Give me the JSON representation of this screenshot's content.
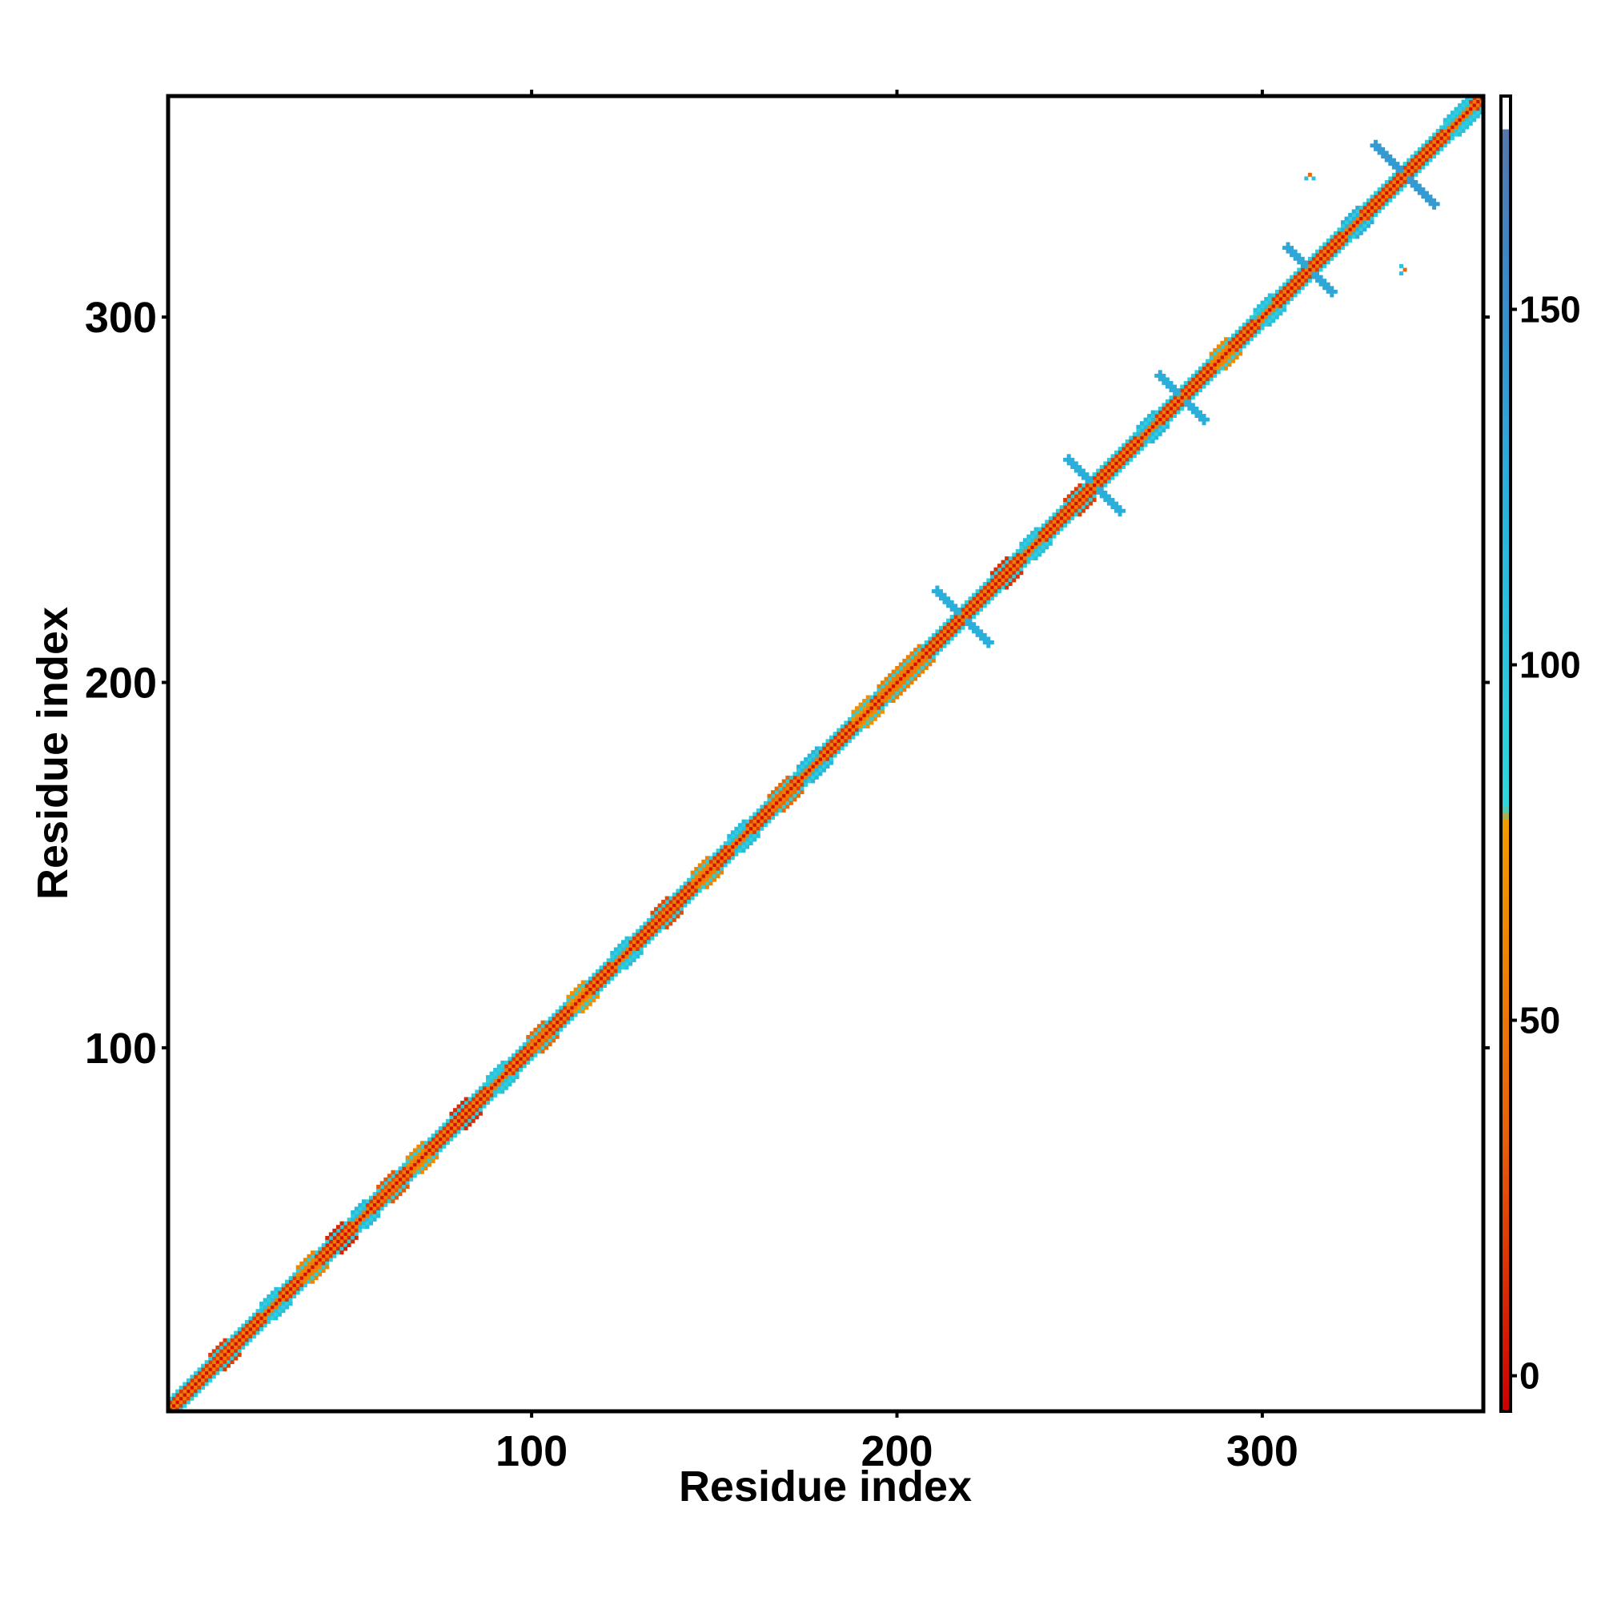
{
  "chart_data": {
    "type": "heatmap",
    "title": "",
    "xlabel": "Residue index",
    "ylabel": "Residue index",
    "xlim": [
      1,
      360
    ],
    "ylim": [
      1,
      360
    ],
    "x_ticks": [
      100,
      200,
      300
    ],
    "y_ticks": [
      100,
      200,
      300
    ],
    "grid": false,
    "legend": "colorbar-right",
    "colorbar": {
      "range": [
        -5,
        180
      ],
      "ticks": [
        0,
        50,
        100,
        150
      ],
      "stops": [
        {
          "value": -5,
          "color": "#cc0000"
        },
        {
          "value": 35,
          "color": "#e8630a"
        },
        {
          "value": 78,
          "color": "#f29a00"
        },
        {
          "value": 80,
          "color": "#2fd6dc"
        },
        {
          "value": 120,
          "color": "#29b4dc"
        },
        {
          "value": 155,
          "color": "#3a88c8"
        },
        {
          "value": 175,
          "color": "#5577aa"
        },
        {
          "value": 175.5,
          "color": "#ffffff"
        },
        {
          "value": 180,
          "color": "#ffffff"
        }
      ]
    },
    "diagonal_bands": [
      {
        "offset": 0,
        "value": 0
      },
      {
        "offset": 1,
        "value": 55
      },
      {
        "offset": 2,
        "value": 18
      },
      {
        "offset": 3,
        "value": 90
      }
    ],
    "diagonal_blobs": [
      {
        "start": 12,
        "end": 16,
        "value": 20
      },
      {
        "start": 26,
        "end": 30,
        "value": 110
      },
      {
        "start": 36,
        "end": 40,
        "value": 60
      },
      {
        "start": 44,
        "end": 48,
        "value": 10
      },
      {
        "start": 51,
        "end": 54,
        "value": 115
      },
      {
        "start": 58,
        "end": 62,
        "value": 30
      },
      {
        "start": 66,
        "end": 70,
        "value": 65
      },
      {
        "start": 78,
        "end": 82,
        "value": 12
      },
      {
        "start": 88,
        "end": 92,
        "value": 105
      },
      {
        "start": 99,
        "end": 103,
        "value": 40
      },
      {
        "start": 110,
        "end": 114,
        "value": 70
      },
      {
        "start": 122,
        "end": 126,
        "value": 110
      },
      {
        "start": 133,
        "end": 137,
        "value": 25
      },
      {
        "start": 144,
        "end": 148,
        "value": 60
      },
      {
        "start": 154,
        "end": 158,
        "value": 112
      },
      {
        "start": 165,
        "end": 170,
        "value": 40
      },
      {
        "start": 173,
        "end": 178,
        "value": 120
      },
      {
        "start": 188,
        "end": 192,
        "value": 70
      },
      {
        "start": 195,
        "end": 206,
        "value": 55
      },
      {
        "start": 226,
        "end": 230,
        "value": 15
      },
      {
        "start": 234,
        "end": 238,
        "value": 110
      },
      {
        "start": 246,
        "end": 250,
        "value": 20
      },
      {
        "start": 266,
        "end": 270,
        "value": 118
      },
      {
        "start": 286,
        "end": 290,
        "value": 65
      },
      {
        "start": 298,
        "end": 302,
        "value": 110
      },
      {
        "start": 322,
        "end": 326,
        "value": 125
      },
      {
        "start": 350,
        "end": 356,
        "value": 105
      }
    ],
    "cross_features": [
      {
        "center": 218,
        "half_length": 7,
        "value": 125
      },
      {
        "center": 254,
        "half_length": 7,
        "value": 125
      },
      {
        "center": 278,
        "half_length": 6,
        "value": 125
      },
      {
        "center": 313,
        "half_length": 6,
        "value": 130
      },
      {
        "center": 339,
        "half_length": 8,
        "value": 140
      }
    ],
    "off_diagonal_contacts": [
      {
        "x": 312,
        "y": 338,
        "value": 110
      },
      {
        "x": 313,
        "y": 339,
        "value": 40
      },
      {
        "x": 314,
        "y": 338,
        "value": 105
      },
      {
        "x": 338,
        "y": 312,
        "value": 110
      },
      {
        "x": 339,
        "y": 313,
        "value": 40
      },
      {
        "x": 338,
        "y": 314,
        "value": 105
      }
    ]
  }
}
